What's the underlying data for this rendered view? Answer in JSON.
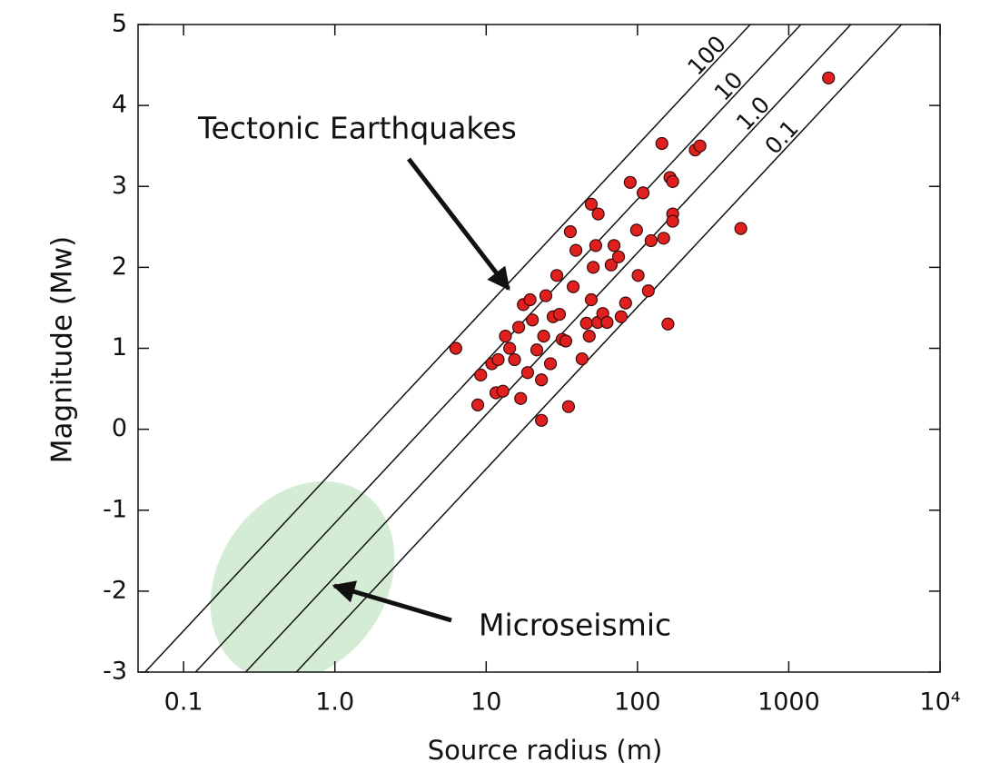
{
  "chart_data": {
    "type": "scatter",
    "xlabel": "Source radius (m)",
    "ylabel": "Magnitude (Mw)",
    "annotations": [
      "Tectonic Earthquakes",
      "Microseismic"
    ],
    "xlog": true,
    "xlim": [
      0.05,
      10000
    ],
    "ylim": [
      -3,
      5
    ],
    "xticks": [
      0.1,
      {
        "value": 1,
        "label": "1.0"
      },
      10,
      100,
      1000,
      {
        "value": 10000,
        "label": "10⁴"
      }
    ],
    "yticks": [
      -3,
      -2,
      -1,
      0,
      1,
      2,
      3,
      4,
      5
    ],
    "color": "#e0201f",
    "stress_drop_lines": [
      {
        "label": "100",
        "x": [
          0.0556,
          556
        ],
        "y": [
          -3,
          5
        ]
      },
      {
        "label": "10",
        "x": [
          0.12,
          1202
        ],
        "y": [
          -3,
          5
        ]
      },
      {
        "label": "1.0",
        "x": [
          0.257,
          2570
        ],
        "y": [
          -3,
          5
        ]
      },
      {
        "label": "0.1",
        "x": [
          0.556,
          5560
        ],
        "y": [
          -3,
          5
        ]
      }
    ],
    "x": [
      6.3,
      8.8,
      9.2,
      10.9,
      11.6,
      12.9,
      12.0,
      13.4,
      14.3,
      15.4,
      16.9,
      16.4,
      17.6,
      18.8,
      20.2,
      19.5,
      21.6,
      23.2,
      23.2,
      24.8,
      24,
      26.6,
      27.7,
      29.3,
      30.5,
      31.8,
      33.6,
      35,
      36,
      37.6,
      39.2,
      43,
      46,
      48,
      49.5,
      51,
      49.5,
      54.6,
      53,
      55,
      59,
      63,
      67,
      70,
      75,
      78,
      83.5,
      89.5,
      98.6,
      101,
      109,
      118,
      123,
      145,
      149,
      159,
      164,
      171,
      171,
      171,
      241,
      259,
      482,
      1832
    ],
    "values": [
      1.0,
      0.3,
      0.67,
      0.81,
      0.45,
      0.47,
      0.86,
      1.15,
      1.0,
      0.86,
      0.38,
      1.26,
      1.54,
      0.7,
      1.35,
      1.6,
      0.98,
      0.61,
      0.11,
      1.65,
      1.15,
      0.81,
      1.39,
      1.9,
      1.42,
      1.11,
      1.09,
      0.28,
      2.44,
      1.76,
      2.21,
      0.87,
      1.31,
      1.15,
      2.78,
      2.0,
      1.6,
      1.32,
      2.27,
      2.66,
      1.43,
      1.32,
      2.03,
      2.27,
      2.13,
      1.39,
      1.56,
      3.05,
      2.46,
      1.9,
      2.92,
      1.71,
      2.33,
      3.53,
      2.36,
      1.3,
      3.11,
      3.06,
      2.66,
      2.57,
      3.45,
      3.5,
      2.48,
      4.34
    ]
  }
}
